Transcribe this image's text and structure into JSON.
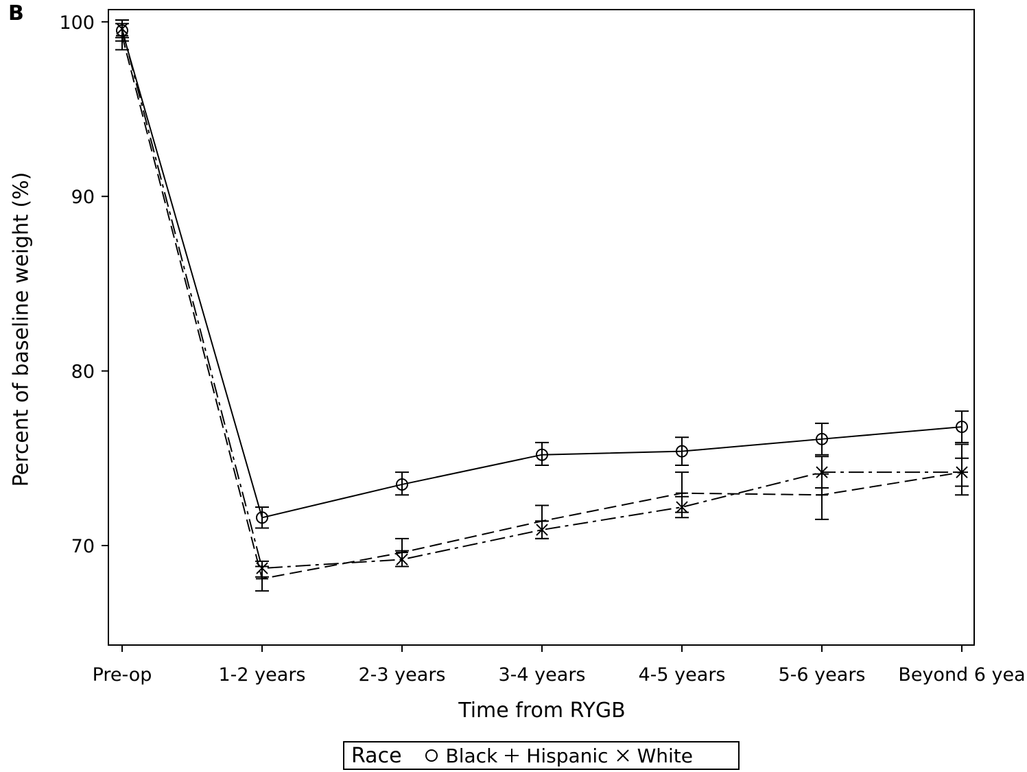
{
  "panel_label": "B",
  "chart_data": {
    "type": "line",
    "xlabel": "Time from RYGB",
    "ylabel": "Percent of baseline weight (%)",
    "categories": [
      "Pre-op",
      "1-2 years",
      "2-3 years",
      "3-4 years",
      "4-5 years",
      "5-6 years",
      "Beyond 6 yea"
    ],
    "yticks": [
      70,
      80,
      90,
      100
    ],
    "ylim": [
      64.3,
      100.7
    ],
    "grid": false,
    "legend": {
      "title": "Race",
      "placement": "bottom"
    },
    "series": [
      {
        "name": "Black",
        "marker": "circle",
        "line_style": "solid",
        "values": [
          99.5,
          71.6,
          73.5,
          75.2,
          75.4,
          76.1,
          76.8
        ],
        "err_low": [
          98.9,
          71.0,
          72.9,
          74.6,
          74.6,
          75.2,
          75.9
        ],
        "err_high": [
          100.1,
          72.2,
          74.2,
          75.9,
          76.2,
          77.0,
          77.7
        ]
      },
      {
        "name": "Hispanic",
        "marker": "plus",
        "line_style": "dashed",
        "values": [
          99.2,
          68.1,
          69.6,
          71.4,
          73.0,
          72.9,
          74.2
        ],
        "err_low": [
          98.4,
          67.4,
          68.8,
          70.4,
          71.9,
          71.5,
          72.9
        ],
        "err_high": [
          99.9,
          68.8,
          70.4,
          72.3,
          74.2,
          74.1,
          75.0
        ]
      },
      {
        "name": "White",
        "marker": "x",
        "line_style": "dashdot",
        "values": [
          99.6,
          68.7,
          69.2,
          70.9,
          72.2,
          74.2,
          74.2
        ],
        "err_low": [
          99.1,
          68.2,
          68.8,
          70.4,
          71.6,
          73.3,
          73.4
        ],
        "err_high": [
          100.1,
          69.1,
          69.7,
          71.4,
          72.8,
          75.1,
          75.8
        ]
      }
    ]
  }
}
